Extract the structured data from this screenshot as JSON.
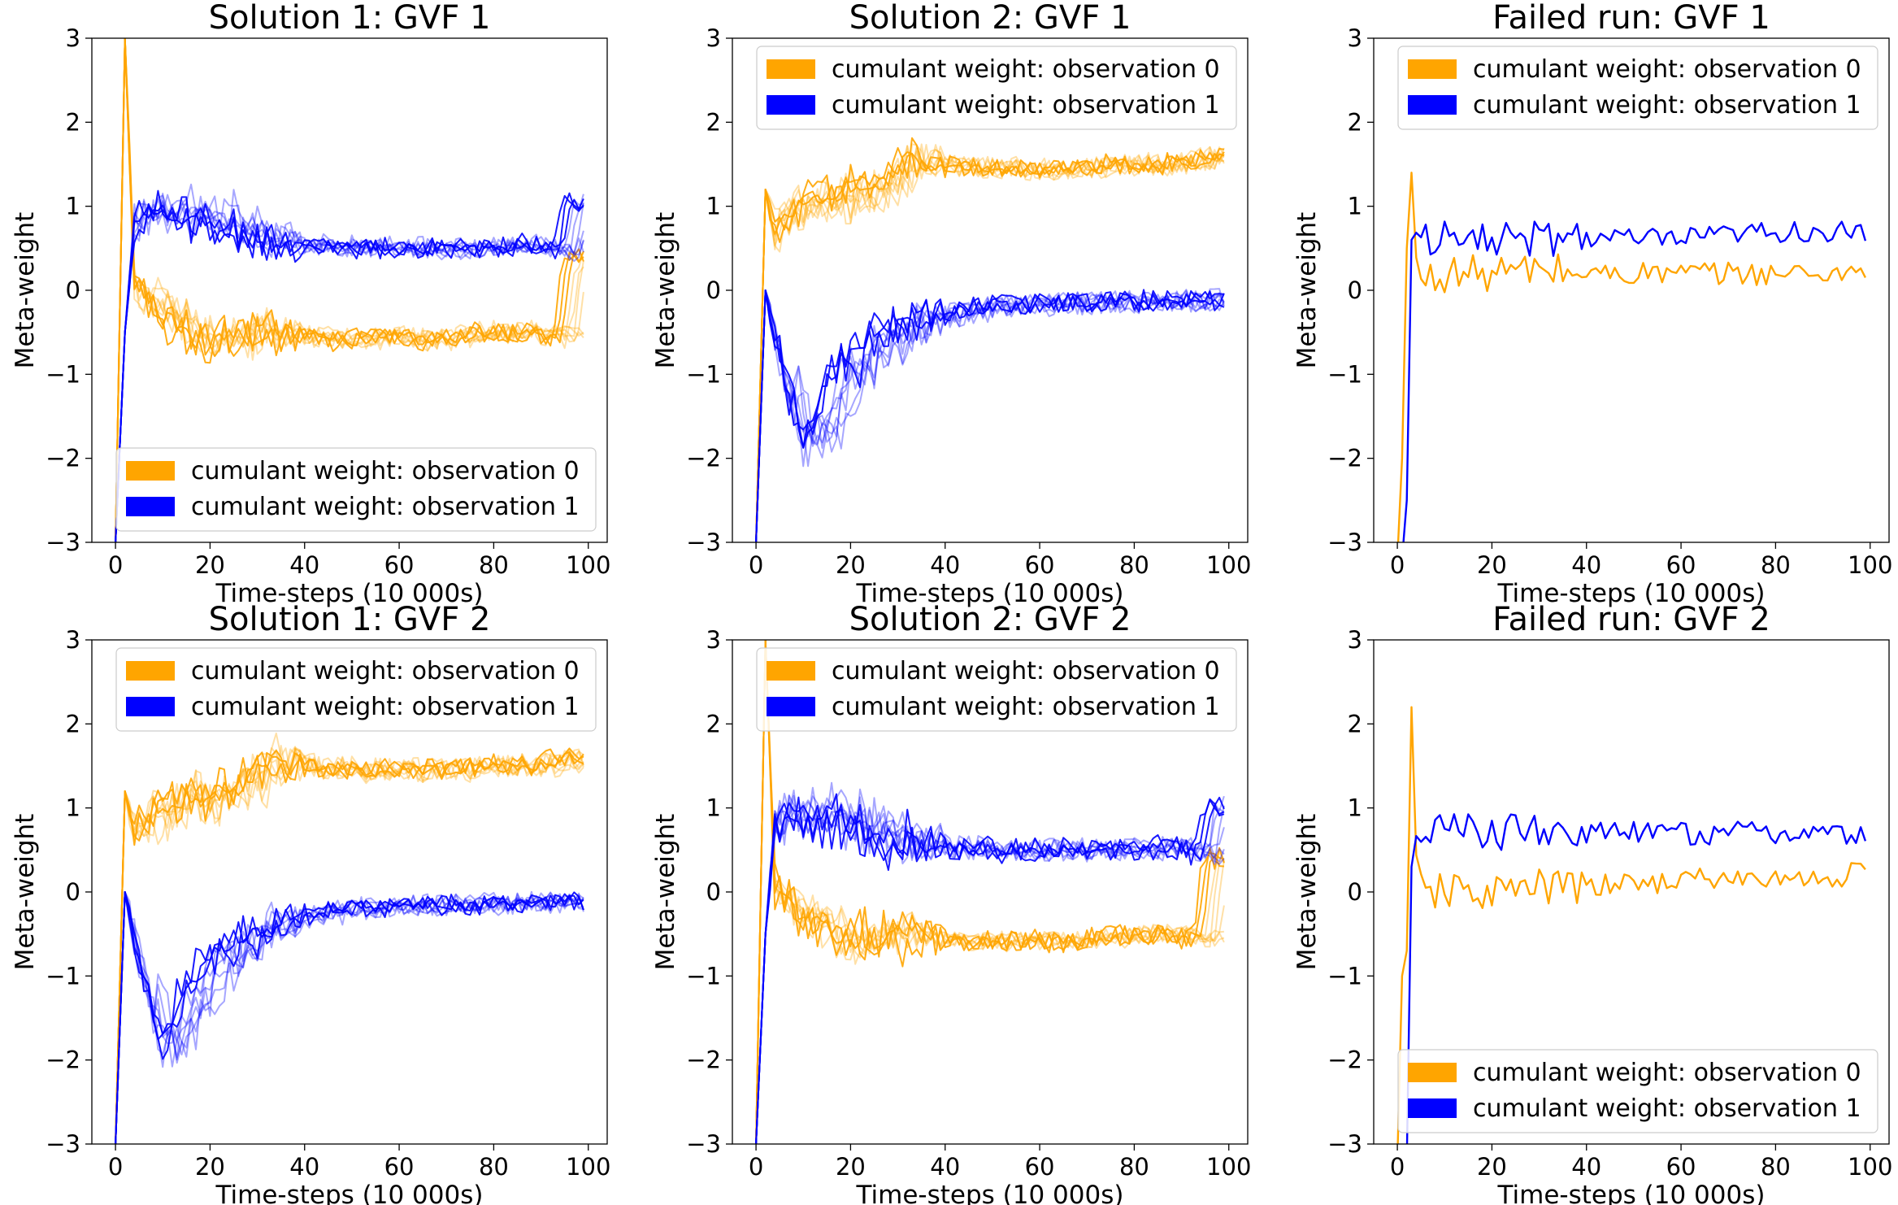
{
  "colors": {
    "observation_0": "#ffa500",
    "observation_1": "#0000ff"
  },
  "chart_data": [
    {
      "type": "line",
      "title": "Solution 1: GVF 1",
      "xlabel": "Time-steps (10 000s)",
      "ylabel": "Meta-weight",
      "xlim": [
        -5,
        104
      ],
      "ylim": [
        -3,
        3
      ],
      "xticks": [
        "0",
        "20",
        "40",
        "60",
        "80",
        "100"
      ],
      "yticks": [
        "−3",
        "−2",
        "−1",
        "0",
        "1",
        "2",
        "3"
      ],
      "legend": {
        "position": "lower-right",
        "entries": [
          "cumulant weight: observation 0",
          "cumulant weight: observation  1"
        ]
      },
      "series_groups": [
        {
          "color_key": "observation_0",
          "n_runs": 10,
          "x": [
            0,
            2,
            4,
            10,
            20,
            30,
            40,
            50,
            60,
            70,
            80,
            90,
            97,
            99
          ],
          "y": [
            -3,
            3.0,
            0.1,
            -0.2,
            -0.6,
            -0.5,
            -0.55,
            -0.6,
            -0.55,
            -0.6,
            -0.5,
            -0.5,
            -0.55,
            0.4
          ]
        },
        {
          "color_key": "observation_1",
          "n_runs": 10,
          "x": [
            0,
            2,
            4,
            10,
            20,
            30,
            40,
            50,
            60,
            70,
            80,
            90,
            97,
            99
          ],
          "y": [
            -3,
            -0.5,
            0.8,
            1.0,
            0.85,
            0.65,
            0.55,
            0.5,
            0.5,
            0.5,
            0.5,
            0.55,
            0.45,
            1.05
          ]
        }
      ]
    },
    {
      "type": "line",
      "title": "Solution 2: GVF 1",
      "xlabel": "Time-steps (10 000s)",
      "ylabel": "Meta-weight",
      "xlim": [
        -5,
        104
      ],
      "ylim": [
        -3,
        3
      ],
      "xticks": [
        "0",
        "20",
        "40",
        "60",
        "80",
        "100"
      ],
      "yticks": [
        "−3",
        "−2",
        "−1",
        "0",
        "1",
        "2",
        "3"
      ],
      "legend": {
        "position": "upper-right",
        "entries": [
          "cumulant weight: observation 0",
          "cumulant weight: observation  1"
        ]
      },
      "series_groups": [
        {
          "color_key": "observation_0",
          "n_runs": 10,
          "x": [
            0,
            2,
            4,
            10,
            20,
            30,
            35,
            40,
            50,
            60,
            70,
            80,
            90,
            99
          ],
          "y": [
            -3,
            1.2,
            0.7,
            1.0,
            1.1,
            1.3,
            1.6,
            1.5,
            1.45,
            1.45,
            1.45,
            1.5,
            1.5,
            1.6
          ]
        },
        {
          "color_key": "observation_1",
          "n_runs": 10,
          "x": [
            0,
            2,
            5,
            10,
            15,
            20,
            30,
            40,
            50,
            60,
            70,
            80,
            90,
            99
          ],
          "y": [
            -3,
            0.0,
            -0.8,
            -1.9,
            -1.6,
            -1.0,
            -0.5,
            -0.3,
            -0.2,
            -0.17,
            -0.15,
            -0.14,
            -0.13,
            -0.12
          ]
        }
      ]
    },
    {
      "type": "line",
      "title": "Failed run: GVF 1",
      "xlabel": "Time-steps (10 000s)",
      "ylabel": "Meta-weight",
      "xlim": [
        -5,
        104
      ],
      "ylim": [
        -3,
        3
      ],
      "xticks": [
        "0",
        "20",
        "40",
        "60",
        "80",
        "100"
      ],
      "yticks": [
        "−3",
        "−2",
        "−1",
        "0",
        "1",
        "2",
        "3"
      ],
      "legend": {
        "position": "upper-right",
        "entries": [
          "cumulant weight: observation 0",
          "cumulant weight: observation  1"
        ]
      },
      "series_groups": [
        {
          "color_key": "observation_0",
          "n_runs": 1,
          "x": [
            0,
            1,
            2,
            3,
            4,
            5,
            10,
            20,
            30,
            40,
            50,
            60,
            70,
            80,
            90,
            99
          ],
          "y": [
            -3.2,
            -2.0,
            0.5,
            1.4,
            0.3,
            0.1,
            0.2,
            0.2,
            0.25,
            0.2,
            0.2,
            0.2,
            0.2,
            0.2,
            0.2,
            0.25
          ]
        },
        {
          "color_key": "observation_1",
          "n_runs": 1,
          "x": [
            0,
            1,
            2,
            3,
            4,
            5,
            10,
            20,
            30,
            40,
            50,
            60,
            70,
            80,
            90,
            99
          ],
          "y": [
            -3.2,
            -3.2,
            -2.5,
            0.6,
            0.75,
            0.6,
            0.6,
            0.6,
            0.6,
            0.65,
            0.6,
            0.6,
            0.65,
            0.7,
            0.7,
            0.65
          ]
        }
      ]
    },
    {
      "type": "line",
      "title": "Solution 1: GVF 2",
      "xlabel": "Time-steps (10 000s)",
      "ylabel": "Meta-weight",
      "xlim": [
        -5,
        104
      ],
      "ylim": [
        -3,
        3
      ],
      "xticks": [
        "0",
        "20",
        "40",
        "60",
        "80",
        "100"
      ],
      "yticks": [
        "−3",
        "−2",
        "−1",
        "0",
        "1",
        "2",
        "3"
      ],
      "legend": {
        "position": "upper-right",
        "entries": [
          "cumulant weight: observation 0",
          "cumulant weight: observation  1"
        ]
      },
      "series_groups": [
        {
          "color_key": "observation_0",
          "n_runs": 10,
          "x": [
            0,
            2,
            4,
            10,
            20,
            30,
            35,
            40,
            50,
            60,
            70,
            80,
            90,
            99
          ],
          "y": [
            -3,
            1.2,
            0.7,
            1.0,
            1.1,
            1.3,
            1.6,
            1.5,
            1.45,
            1.45,
            1.45,
            1.5,
            1.5,
            1.6
          ]
        },
        {
          "color_key": "observation_1",
          "n_runs": 10,
          "x": [
            0,
            2,
            5,
            10,
            15,
            20,
            30,
            40,
            50,
            60,
            70,
            80,
            90,
            99
          ],
          "y": [
            -3,
            0.0,
            -0.8,
            -1.9,
            -1.6,
            -1.0,
            -0.5,
            -0.3,
            -0.2,
            -0.17,
            -0.15,
            -0.14,
            -0.13,
            -0.12
          ]
        }
      ]
    },
    {
      "type": "line",
      "title": "Solution 2: GVF 2",
      "xlabel": "Time-steps (10 000s)",
      "ylabel": "Meta-weight",
      "xlim": [
        -5,
        104
      ],
      "ylim": [
        -3,
        3
      ],
      "xticks": [
        "0",
        "20",
        "40",
        "60",
        "80",
        "100"
      ],
      "yticks": [
        "−3",
        "−2",
        "−1",
        "0",
        "1",
        "2",
        "3"
      ],
      "legend": {
        "position": "upper-right",
        "entries": [
          "cumulant weight: observation 0",
          "cumulant weight: observation  1"
        ]
      },
      "series_groups": [
        {
          "color_key": "observation_0",
          "n_runs": 10,
          "x": [
            0,
            2,
            4,
            10,
            20,
            30,
            40,
            50,
            60,
            70,
            80,
            90,
            97,
            99
          ],
          "y": [
            -3,
            3.0,
            0.1,
            -0.2,
            -0.6,
            -0.5,
            -0.55,
            -0.6,
            -0.55,
            -0.6,
            -0.5,
            -0.5,
            -0.55,
            0.4
          ]
        },
        {
          "color_key": "observation_1",
          "n_runs": 10,
          "x": [
            0,
            2,
            4,
            10,
            20,
            30,
            40,
            50,
            60,
            70,
            80,
            90,
            97,
            99
          ],
          "y": [
            -3,
            -0.5,
            0.8,
            1.0,
            0.85,
            0.65,
            0.55,
            0.5,
            0.5,
            0.5,
            0.5,
            0.55,
            0.45,
            1.05
          ]
        }
      ]
    },
    {
      "type": "line",
      "title": "Failed run: GVF 2",
      "xlabel": "Time-steps (10 000s)",
      "ylabel": "Meta-weight",
      "xlim": [
        -5,
        104
      ],
      "ylim": [
        -3,
        3
      ],
      "xticks": [
        "0",
        "20",
        "40",
        "60",
        "80",
        "100"
      ],
      "yticks": [
        "−3",
        "−2",
        "−1",
        "0",
        "1",
        "2",
        "3"
      ],
      "legend": {
        "position": "lower-right",
        "entries": [
          "cumulant weight: observation 0",
          "cumulant weight: observation  1"
        ]
      },
      "series_groups": [
        {
          "color_key": "observation_0",
          "n_runs": 1,
          "x": [
            0,
            1,
            2,
            3,
            4,
            5,
            10,
            20,
            30,
            40,
            50,
            60,
            70,
            80,
            90,
            99
          ],
          "y": [
            -3.2,
            -1.0,
            -0.7,
            2.2,
            0.3,
            0.0,
            0.0,
            0.0,
            0.05,
            0.05,
            0.1,
            0.15,
            0.15,
            0.15,
            0.15,
            0.25
          ]
        },
        {
          "color_key": "observation_1",
          "n_runs": 1,
          "x": [
            0,
            1,
            2,
            3,
            4,
            5,
            10,
            20,
            30,
            40,
            50,
            60,
            70,
            80,
            90,
            99
          ],
          "y": [
            -3.2,
            -3.2,
            -3.2,
            0.3,
            0.85,
            0.7,
            0.75,
            0.7,
            0.75,
            0.7,
            0.7,
            0.7,
            0.7,
            0.7,
            0.7,
            0.65
          ]
        }
      ]
    }
  ]
}
